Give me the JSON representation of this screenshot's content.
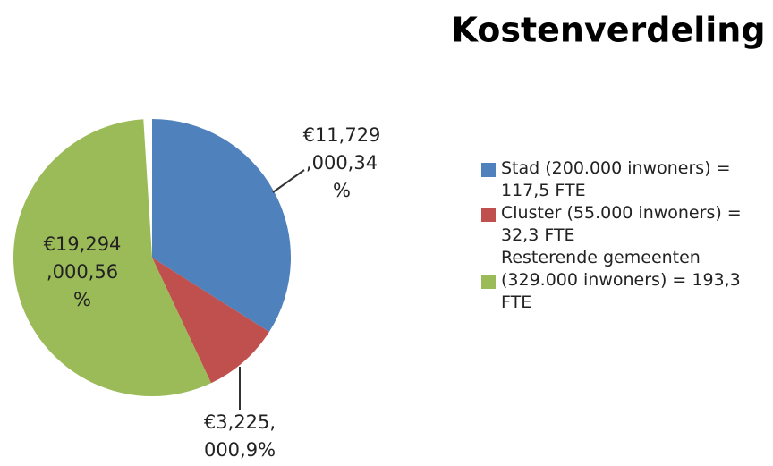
{
  "chart_data": {
    "type": "pie",
    "title": "Kostenverdeling",
    "categories": [
      "Stad (200.000 inwoners) = 117,5 FTE",
      "Cluster (55.000 inwoners) = 32,3 FTE",
      "Resterende gemeenten (329.000 inwoners) = 193,3 FTE"
    ],
    "values": [
      34,
      9,
      56
    ],
    "value_labels": [
      "€11,729,000,34%",
      "€3,225,000,9%",
      "€19,294,000,56%"
    ],
    "colors": [
      "#4f81bd",
      "#c0504d",
      "#9bbb59"
    ],
    "legend": "right"
  }
}
